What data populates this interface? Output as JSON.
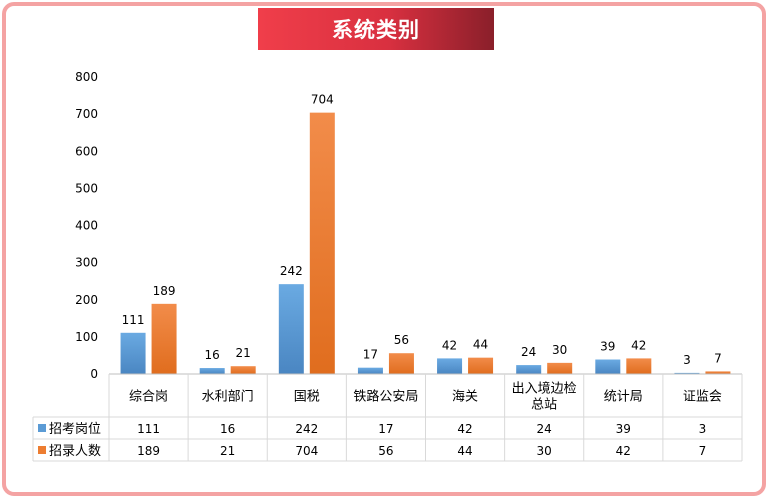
{
  "colors": {
    "border": "#f4a3a3",
    "series_blue": "#5b9bd5",
    "series_orange": "#ed7d31",
    "title_bg": "#e8323f"
  },
  "chart_data": {
    "type": "bar",
    "title": "系统类别",
    "categories": [
      "综合岗",
      "水利部门",
      "国税",
      "铁路公安局",
      "海关",
      "出入境边检总站",
      "统计局",
      "证监会"
    ],
    "category_labels": [
      [
        "综合岗"
      ],
      [
        "水利部门"
      ],
      [
        "国税"
      ],
      [
        "铁路公安局"
      ],
      [
        "海关"
      ],
      [
        "出入境边检",
        "总站"
      ],
      [
        "统计局"
      ],
      [
        "证监会"
      ]
    ],
    "series": [
      {
        "name": "招考岗位",
        "color": "#5b9bd5",
        "values": [
          111,
          16,
          242,
          17,
          42,
          24,
          39,
          3
        ]
      },
      {
        "name": "招录人数",
        "color": "#ed7d31",
        "values": [
          189,
          21,
          704,
          56,
          44,
          30,
          42,
          7
        ]
      }
    ],
    "ylim": [
      0,
      800
    ],
    "yticks": [
      0,
      100,
      200,
      300,
      400,
      500,
      600,
      700,
      800
    ],
    "grid": false,
    "data_table": true,
    "xlabel": "",
    "ylabel": ""
  }
}
